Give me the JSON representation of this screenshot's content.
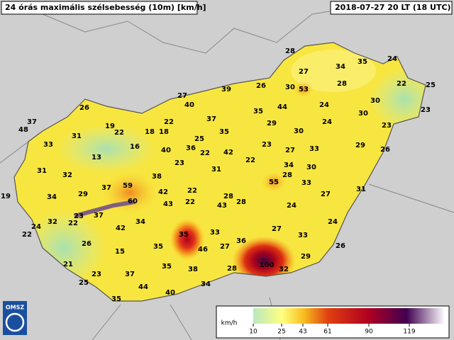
{
  "header": {
    "title": "24 órás maximális szélsebesség (10m) [km/h]",
    "timestamp": "2018-07-27 20 LT (18 UTC)"
  },
  "stations": [
    28,
    34,
    35,
    24,
    27,
    26,
    30,
    53,
    28,
    22,
    25,
    39,
    27,
    40,
    26,
    44,
    24,
    30,
    23,
    35,
    30,
    37,
    29,
    24,
    23,
    37,
    48,
    19,
    31,
    22,
    22,
    18,
    18,
    35,
    30,
    25,
    33,
    16,
    13,
    40,
    36,
    22,
    42,
    23,
    27,
    33,
    29,
    26,
    22,
    23,
    34,
    30,
    31,
    31,
    32,
    38,
    28,
    59,
    55,
    37,
    42,
    22,
    28,
    33,
    27,
    31,
    19,
    34,
    29,
    60,
    43,
    22,
    43,
    28,
    24,
    23,
    37,
    22,
    24,
    32,
    24,
    42,
    34,
    35,
    33,
    27,
    33,
    46,
    27,
    36,
    26,
    22,
    26,
    15,
    35,
    21,
    29,
    100,
    32,
    35,
    38,
    28,
    23,
    37,
    25,
    34,
    44,
    40,
    35
  ],
  "legend": {
    "unit": "km/h",
    "ticks": [
      10,
      25,
      43,
      61,
      90,
      119
    ]
  },
  "logo": "OMSZ"
}
